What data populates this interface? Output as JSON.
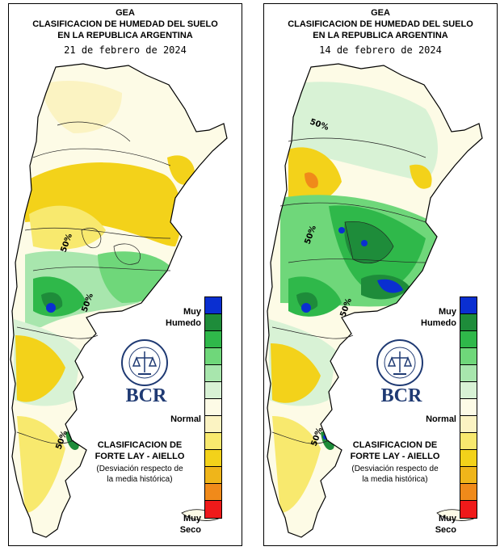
{
  "panels": [
    {
      "org": "GEA",
      "title_line1": "CLASIFICACION DE HUMEDAD DEL SUELO",
      "title_line2": "EN LA REPUBLICA ARGENTINA",
      "date": "21 de febrero de 2024",
      "isoline_labels": [
        "50%",
        "50%",
        "50%"
      ]
    },
    {
      "org": "GEA",
      "title_line1": "CLASIFICACION DE HUMEDAD DEL SUELO",
      "title_line2": "EN LA REPUBLICA ARGENTINA",
      "date": "14 de febrero de 2024",
      "isoline_labels": [
        "50%",
        "50%",
        "50%",
        "50%"
      ]
    }
  ],
  "legend": {
    "label_wettest_1": "Muy",
    "label_wettest_2": "Humedo",
    "label_normal": "Normal",
    "label_driest_1": "Muy",
    "label_driest_2": "Seco",
    "classes_wet_to_dry": [
      "#0a2fd1",
      "#1e8c3a",
      "#2fb84a",
      "#6fd77a",
      "#a8e6ad",
      "#d8f2d5",
      "#fdfbe6",
      "#fbf3c2",
      "#f8e96e",
      "#f3d21a",
      "#efb51a",
      "#f08a1a",
      "#ef1a1a"
    ],
    "title_line1": "CLASIFICACION DE",
    "title_line2": "FORTE LAY - AIELLO",
    "note_line1": "(Desviación respecto de",
    "note_line2": "la media histórica)"
  },
  "logo": {
    "name": "BCR",
    "seal_text": "BOLSA DE COMERCIO DE ROSARIO"
  },
  "colors": {
    "very_wet": "#0a2fd1",
    "wet": "#2fb84a",
    "normal": "#fdfbe6",
    "dry": "#f3d21a",
    "very_dry": "#ef1a1a",
    "brand": "#1f3a73"
  }
}
